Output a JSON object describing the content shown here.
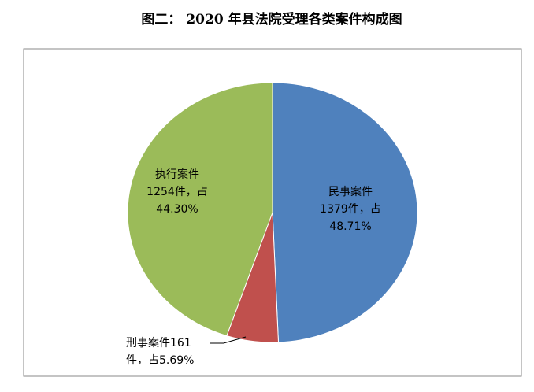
{
  "chart_data": {
    "type": "pie",
    "title": "图二：   2020 年县法院受理各类案件构成图",
    "categories": [
      "民事案件",
      "刑事案件",
      "执行案件"
    ],
    "counts": [
      1379,
      161,
      1254
    ],
    "count_suffix": "件，占",
    "values": [
      48.71,
      5.69,
      44.3
    ],
    "value_labels": [
      "48.71%",
      "5.69%",
      "44.30%"
    ],
    "colors": [
      "#4f81bd",
      "#c0504d",
      "#9bbb59"
    ]
  }
}
